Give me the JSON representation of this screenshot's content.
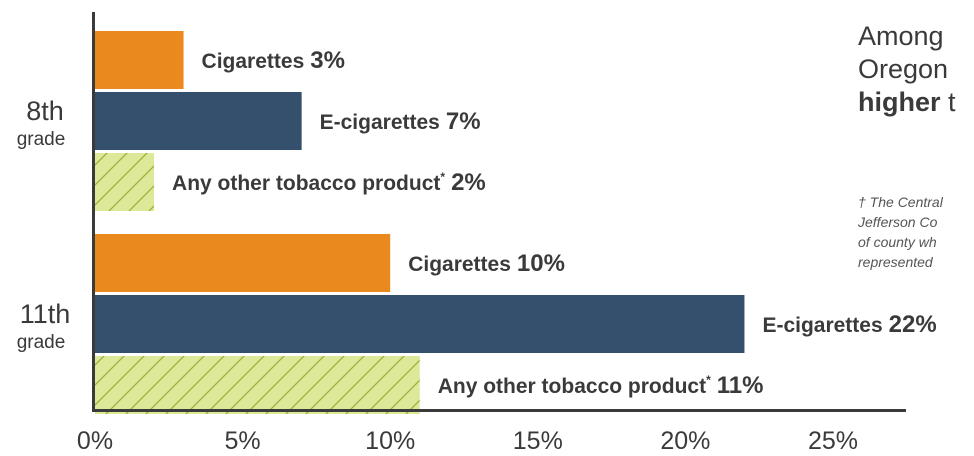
{
  "colors": {
    "cigarettes": "#ea8a1e",
    "e_cigarettes": "#34506c",
    "other": "#dde898",
    "other_hatch": "#9fb03c",
    "axis": "#3a3a3a"
  },
  "chart_data": {
    "type": "bar",
    "orientation": "horizontal",
    "xlim": [
      0,
      25
    ],
    "ticks": [
      "0%",
      "5%",
      "10%",
      "15%",
      "20%",
      "25%"
    ],
    "tick_values": [
      0,
      5,
      10,
      15,
      20,
      25
    ],
    "groups": [
      {
        "num": "8th",
        "word": "grade",
        "bars": [
          {
            "product": "cigarettes",
            "label": "Cigarettes",
            "value": 3,
            "value_text": "3%",
            "sup": ""
          },
          {
            "product": "e_cigarettes",
            "label": "E-cigarettes",
            "value": 7,
            "value_text": "7%",
            "sup": ""
          },
          {
            "product": "other",
            "label": "Any other tobacco product",
            "value": 2,
            "value_text": "2%",
            "sup": "*"
          }
        ]
      },
      {
        "num": "11th",
        "word": "grade",
        "bars": [
          {
            "product": "cigarettes",
            "label": "Cigarettes",
            "value": 10,
            "value_text": "10%",
            "sup": ""
          },
          {
            "product": "e_cigarettes",
            "label": "E-cigarettes",
            "value": 22,
            "value_text": "22%",
            "sup": ""
          },
          {
            "product": "other",
            "label": "Any other tobacco product",
            "value": 11,
            "value_text": "11%",
            "sup": "*"
          }
        ]
      }
    ]
  },
  "side": {
    "line1": "Among",
    "line2": "Oregon",
    "line3_bold": "higher",
    "line3_rest": " t"
  },
  "footnote": {
    "line1": "† The Central",
    "line2": "Jefferson Co",
    "line3": "of county wh",
    "line4": "represented"
  }
}
